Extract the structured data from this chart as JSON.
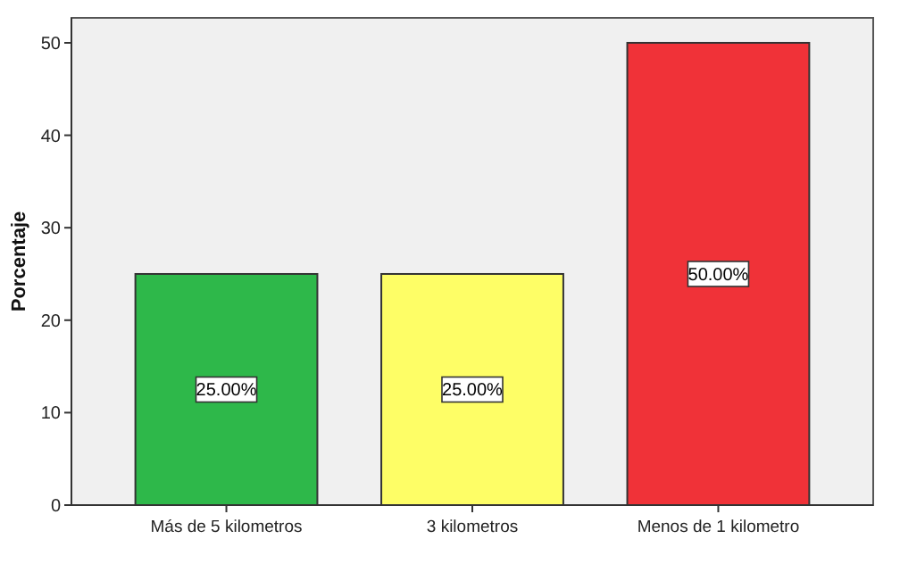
{
  "chart_data": {
    "type": "bar",
    "ylabel": "Porcentaje",
    "categories": [
      "Más de 5 kilometros",
      "3 kilometros",
      "Menos de 1 kilometro"
    ],
    "values": [
      25,
      25,
      50
    ],
    "colors": [
      "#2eb84a",
      "#fefe66",
      "#f03238"
    ],
    "value_labels": [
      "25.00%",
      "25.00%",
      "50.00%"
    ],
    "ylim": [
      0,
      52.7
    ],
    "yticks": [
      0,
      10,
      20,
      30,
      40,
      50
    ],
    "grid": false
  }
}
